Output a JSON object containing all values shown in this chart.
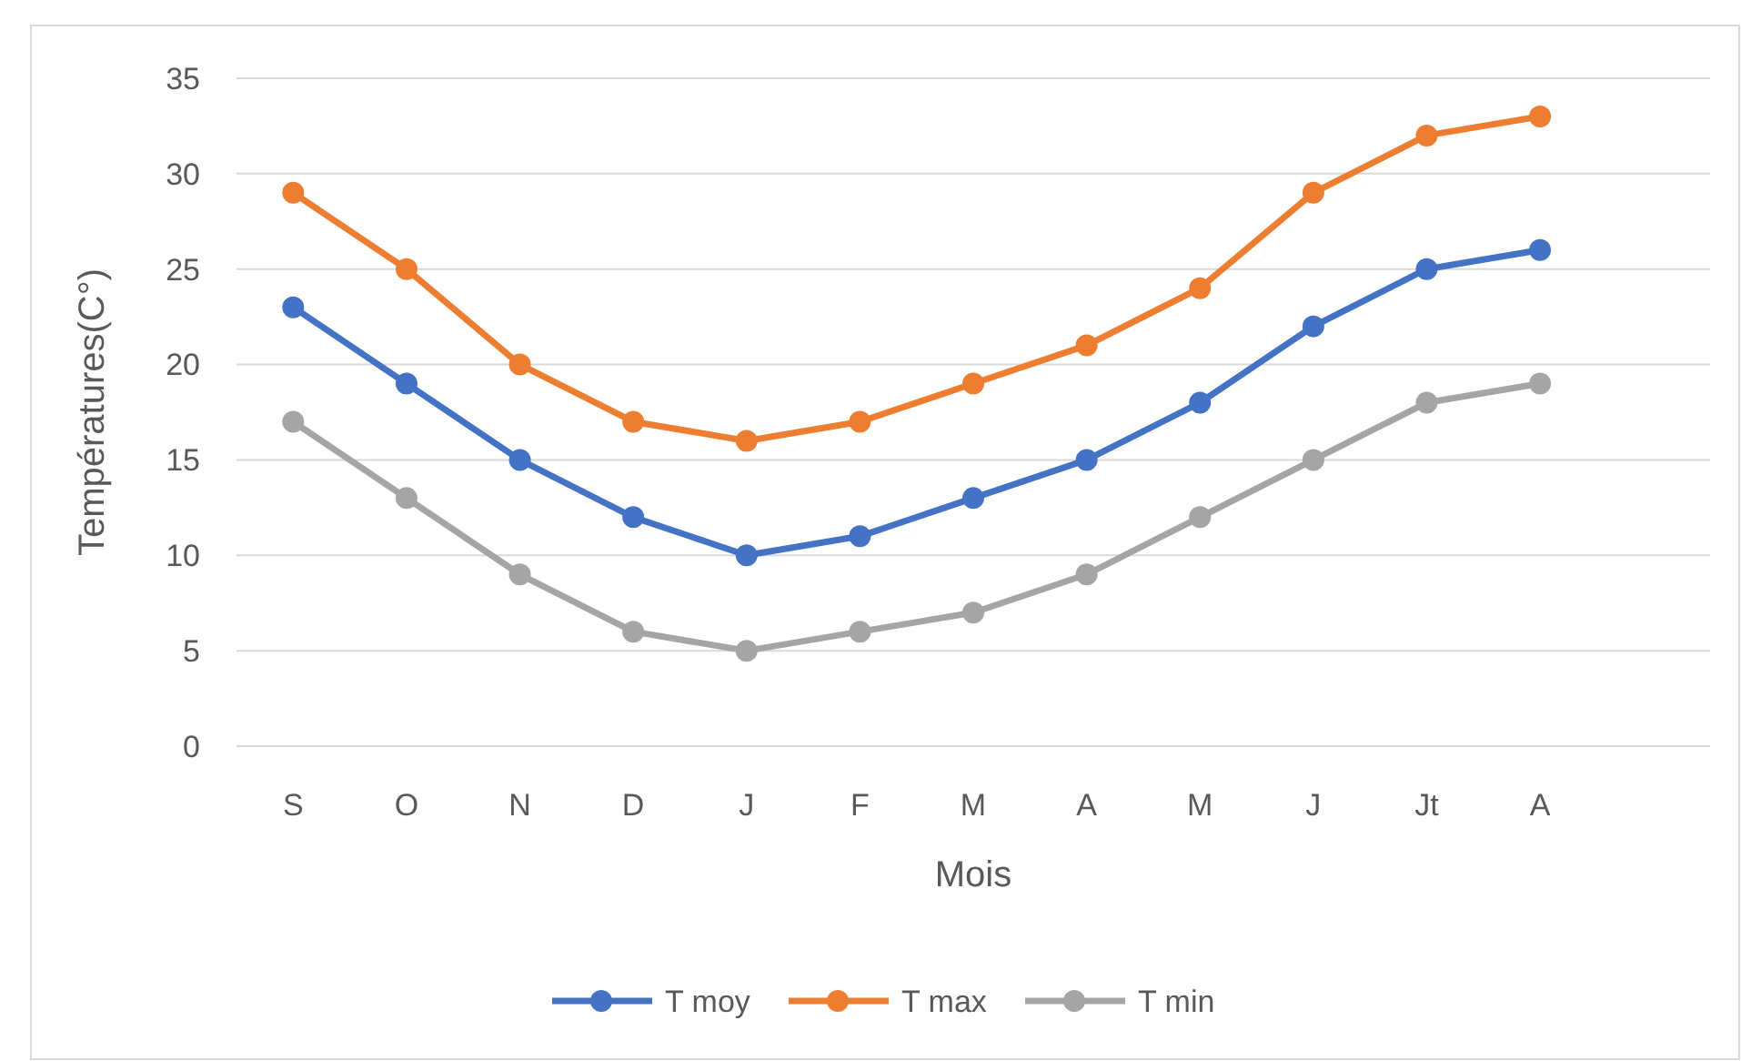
{
  "chart_data": {
    "type": "line",
    "xlabel": "Mois",
    "ylabel": "Températures(C°)",
    "categories": [
      "S",
      "O",
      "N",
      "D",
      "J",
      "F",
      "M",
      "A",
      "M",
      "J",
      "Jt",
      "A",
      null
    ],
    "series": [
      {
        "name": "T moy",
        "color": "#4472c4",
        "values": [
          23,
          19,
          15,
          12,
          10,
          11,
          13,
          15,
          18,
          22,
          25,
          26,
          null
        ]
      },
      {
        "name": "T max",
        "color": "#ed7d31",
        "values": [
          29,
          25,
          20,
          17,
          16,
          17,
          19,
          21,
          24,
          29,
          32,
          33,
          null
        ]
      },
      {
        "name": "T min",
        "color": "#a5a5a5",
        "values": [
          17,
          13,
          9,
          6,
          5,
          6,
          7,
          9,
          12,
          15,
          18,
          19,
          null
        ]
      }
    ],
    "ylim": [
      0,
      35
    ],
    "yticks": [
      0,
      5,
      10,
      15,
      20,
      25,
      30,
      35
    ],
    "grid": "y",
    "legend": "bottom",
    "marker": "circle",
    "line_style": "solid"
  }
}
